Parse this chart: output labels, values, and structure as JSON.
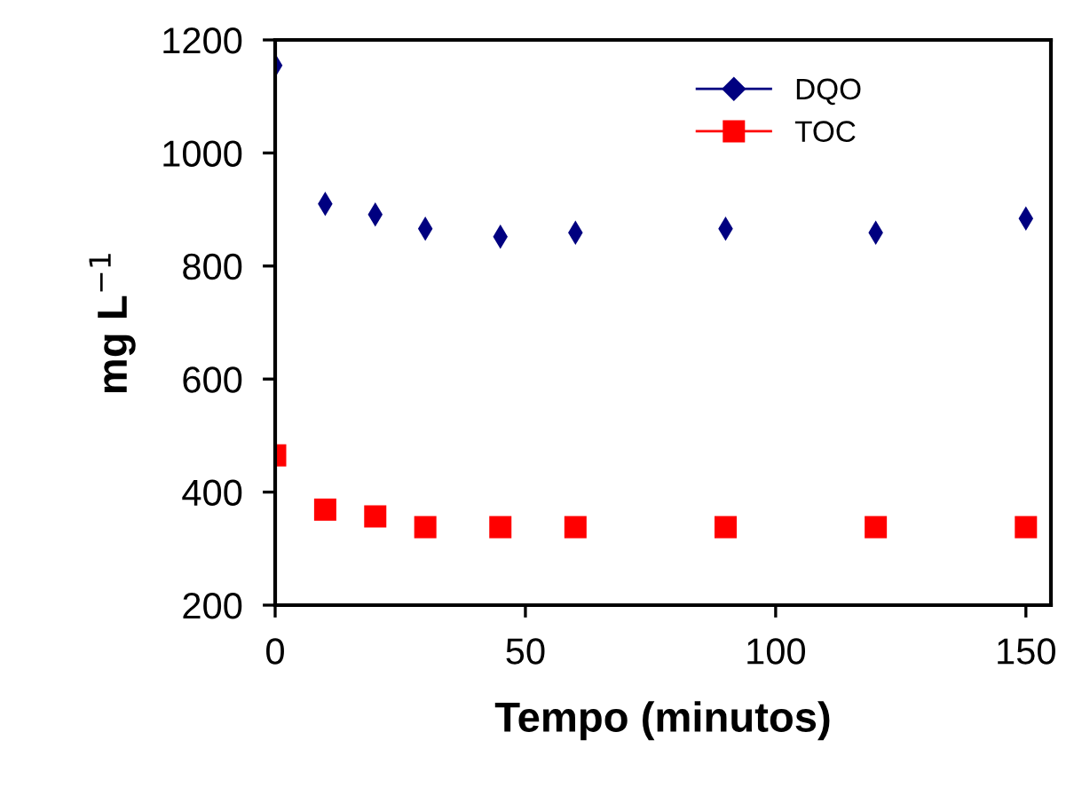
{
  "chart_data": {
    "type": "scatter",
    "xlabel": "Tempo (minutos)",
    "ylabel": "mg L$^{−1}$",
    "x": [
      0,
      10,
      20,
      30,
      45,
      60,
      90,
      120,
      150
    ],
    "series": [
      {
        "name": "DQO",
        "color": "#000080",
        "marker": "diamond",
        "values": [
          1155,
          910,
          891,
          866,
          852,
          859,
          866,
          859,
          884
        ]
      },
      {
        "name": "TOC",
        "color": "#ff0000",
        "marker": "square",
        "values": [
          465,
          369,
          357,
          338,
          338,
          338,
          338,
          338,
          338
        ]
      }
    ],
    "xlim": [
      0,
      155
    ],
    "xticks": [
      0,
      50,
      100,
      150
    ],
    "ylim": [
      200,
      1200
    ],
    "yticks": [
      200,
      400,
      600,
      800,
      1000,
      1200
    ],
    "legend": "top right",
    "grid": false
  }
}
